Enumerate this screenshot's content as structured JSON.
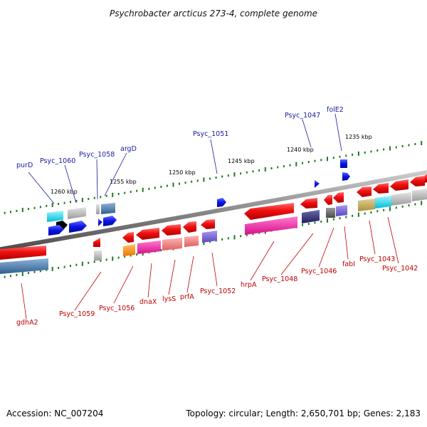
{
  "title": "Psychrobacter arcticus 273-4, complete genome",
  "footer": {
    "accession": "Accession: NC_007204",
    "summary": "Topology: circular; Length: 2,650,701 bp; Genes: 2,183"
  },
  "kbp_labels": {
    "k1235": "1235 kbp",
    "k1240": "1240 kbp",
    "k1245": "1245 kbp",
    "k1250": "1250 kbp",
    "k1255": "1255 kbp",
    "k1260": "1260 kbp"
  },
  "gene_labels_forward": {
    "purD": "purD",
    "psyc1060": "Psyc_1060",
    "psyc1058": "Psyc_1058",
    "argD": "argD",
    "psyc1051": "Psyc_1051",
    "psyc1047": "Psyc_1047",
    "folE2": "folE2"
  },
  "gene_labels_reverse": {
    "gdhA2": "gdhA2",
    "psyc1059": "Psyc_1059",
    "psyc1056": "Psyc_1056",
    "dnaX": "dnaX",
    "lysS": "lysS",
    "prfA": "prfA",
    "psyc1052": "Psyc_1052",
    "hrpA": "hrpA",
    "psyc1048": "Psyc_1048",
    "psyc1046": "Psyc_1046",
    "fabI": "fabI",
    "psyc1043": "Psyc_1043",
    "psyc1042": "Psyc_1042"
  },
  "colors": {
    "backbone": "#7a7a7a",
    "forward_arrow": "#0a14e6",
    "reverse_arrow": "#e60f0f",
    "tick": "#1f7a1f",
    "forward_label": "#1a1aa0",
    "reverse_label": "#c00000"
  }
}
